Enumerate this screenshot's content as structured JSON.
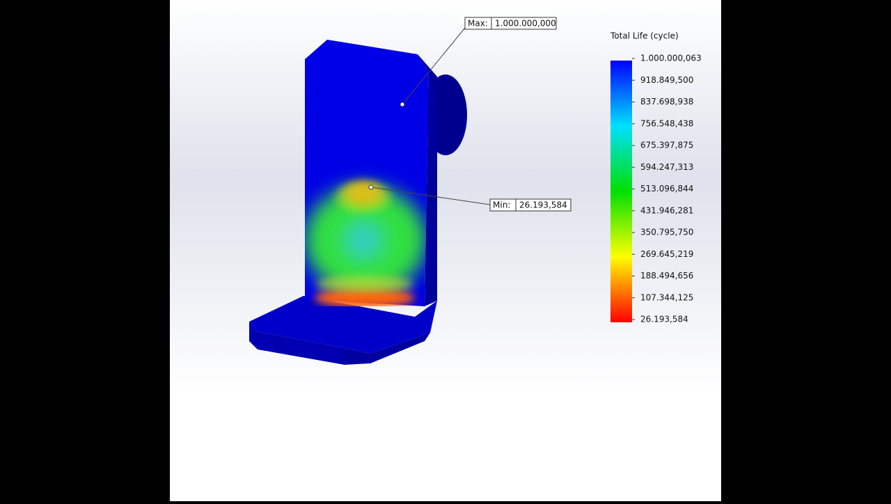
{
  "legend": {
    "title": "Total Life (cycle)",
    "labels": [
      "1.000.000,063",
      "918.849,500",
      "837.698,938",
      "756.548,438",
      "675.397,875",
      "594.247,313",
      "513.096,844",
      "431.946,281",
      "350.795,750",
      "269.645,219",
      "188.494,656",
      "107.344,125",
      "26.193,584"
    ]
  },
  "max_probe": {
    "label": "Max:",
    "value": "1.000.000,000"
  },
  "min_probe": {
    "label": "Min:",
    "value": "26.193,584"
  }
}
